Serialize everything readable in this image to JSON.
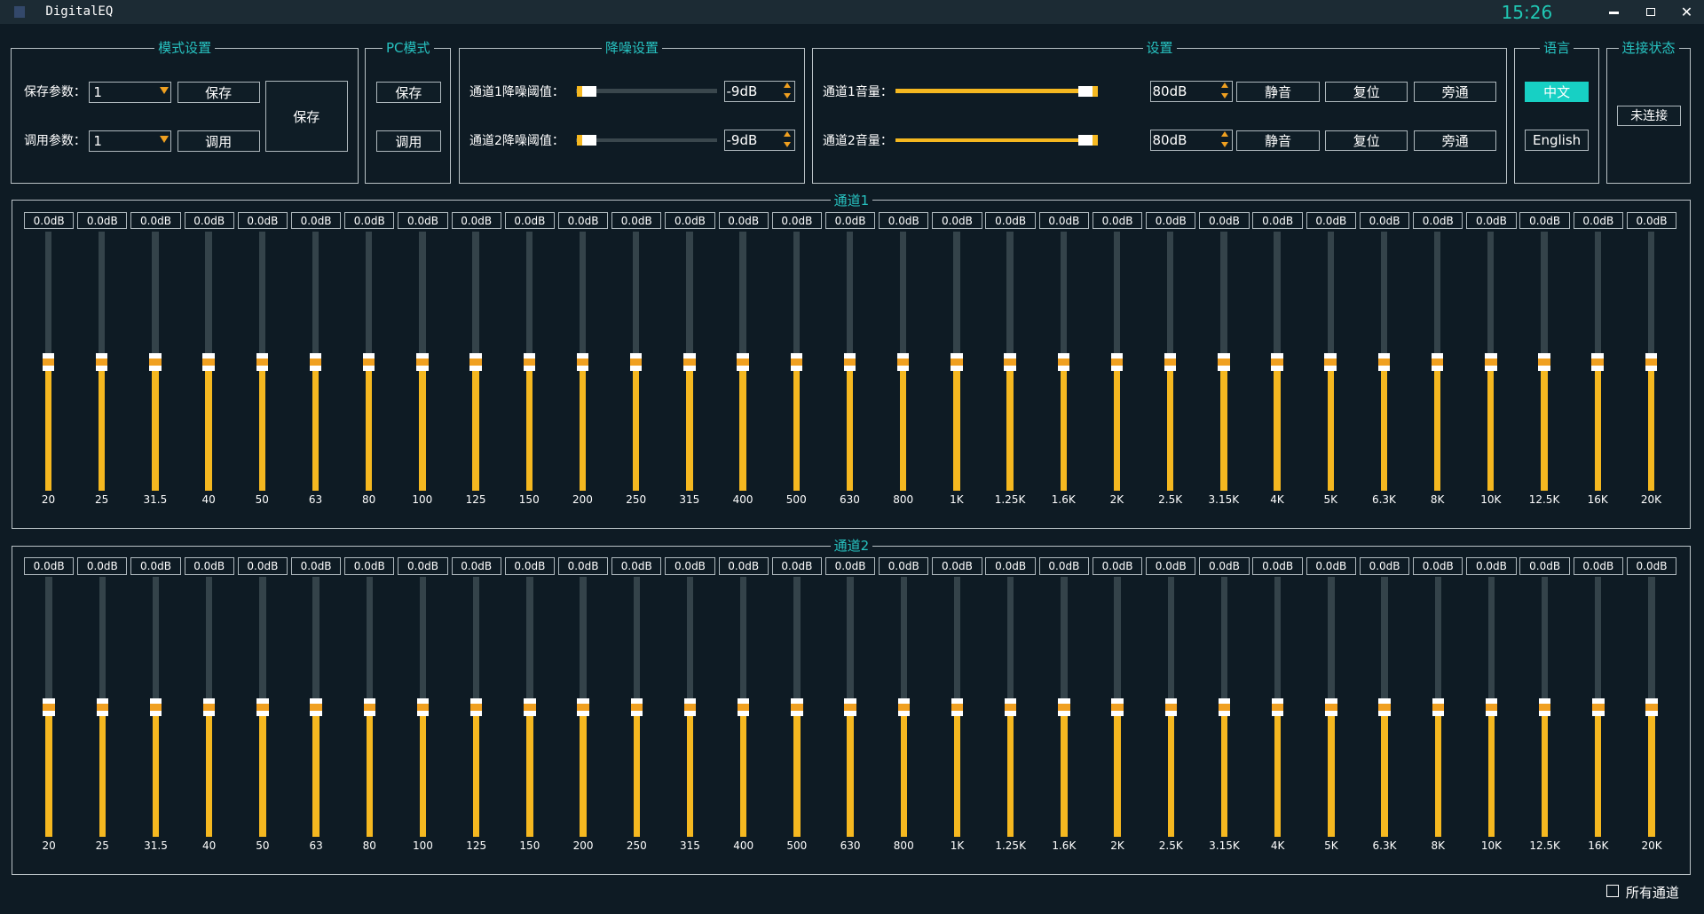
{
  "window": {
    "title": "DigitalEQ",
    "time": "15:26"
  },
  "mode_settings": {
    "title": "模式设置",
    "save_label": "保存参数：",
    "save_value": "1",
    "save_button": "保存",
    "load_label": "调用参数：",
    "load_value": "1",
    "load_button": "调用",
    "big_button": "保存"
  },
  "pc_mode": {
    "title": "PC模式",
    "save_button": "保存",
    "load_button": "调用"
  },
  "noise": {
    "title": "降噪设置",
    "rows": [
      {
        "label": "通道1降噪阈值：",
        "value": "-9dB"
      },
      {
        "label": "通道2降噪阈值：",
        "value": "-9dB"
      }
    ]
  },
  "settings": {
    "title": "设置",
    "rows": [
      {
        "label": "通道1音量：",
        "value": "80dB",
        "buttons": [
          "静音",
          "复位",
          "旁通"
        ]
      },
      {
        "label": "通道2音量：",
        "value": "80dB",
        "buttons": [
          "静音",
          "复位",
          "旁通"
        ]
      }
    ]
  },
  "language": {
    "title": "语言",
    "options": [
      "中文",
      "English"
    ]
  },
  "connection": {
    "title": "连接状态",
    "status": "未连接"
  },
  "channels": [
    {
      "title": "通道1",
      "gains": [
        "0.0dB",
        "0.0dB",
        "0.0dB",
        "0.0dB",
        "0.0dB",
        "0.0dB",
        "0.0dB",
        "0.0dB",
        "0.0dB",
        "0.0dB",
        "0.0dB",
        "0.0dB",
        "0.0dB",
        "0.0dB",
        "0.0dB",
        "0.0dB",
        "0.0dB",
        "0.0dB",
        "0.0dB",
        "0.0dB",
        "0.0dB",
        "0.0dB",
        "0.0dB",
        "0.0dB",
        "0.0dB",
        "0.0dB",
        "0.0dB",
        "0.0dB",
        "0.0dB",
        "0.0dB",
        "0.0dB"
      ],
      "bands": [
        "20",
        "25",
        "31.5",
        "40",
        "50",
        "63",
        "80",
        "100",
        "125",
        "150",
        "200",
        "250",
        "315",
        "400",
        "500",
        "630",
        "800",
        "1K",
        "1.25K",
        "1.6K",
        "2K",
        "2.5K",
        "3.15K",
        "4K",
        "5K",
        "6.3K",
        "8K",
        "10K",
        "12.5K",
        "16K",
        "20K"
      ]
    },
    {
      "title": "通道2",
      "gains": [
        "0.0dB",
        "0.0dB",
        "0.0dB",
        "0.0dB",
        "0.0dB",
        "0.0dB",
        "0.0dB",
        "0.0dB",
        "0.0dB",
        "0.0dB",
        "0.0dB",
        "0.0dB",
        "0.0dB",
        "0.0dB",
        "0.0dB",
        "0.0dB",
        "0.0dB",
        "0.0dB",
        "0.0dB",
        "0.0dB",
        "0.0dB",
        "0.0dB",
        "0.0dB",
        "0.0dB",
        "0.0dB",
        "0.0dB",
        "0.0dB",
        "0.0dB",
        "0.0dB",
        "0.0dB",
        "0.0dB"
      ],
      "bands": [
        "20",
        "25",
        "31.5",
        "40",
        "50",
        "63",
        "80",
        "100",
        "125",
        "150",
        "200",
        "250",
        "315",
        "400",
        "500",
        "630",
        "800",
        "1K",
        "1.25K",
        "1.6K",
        "2K",
        "2.5K",
        "3.15K",
        "4K",
        "5K",
        "6.3K",
        "8K",
        "10K",
        "12.5K",
        "16K",
        "20K"
      ]
    }
  ],
  "all_channels": "所有通道"
}
